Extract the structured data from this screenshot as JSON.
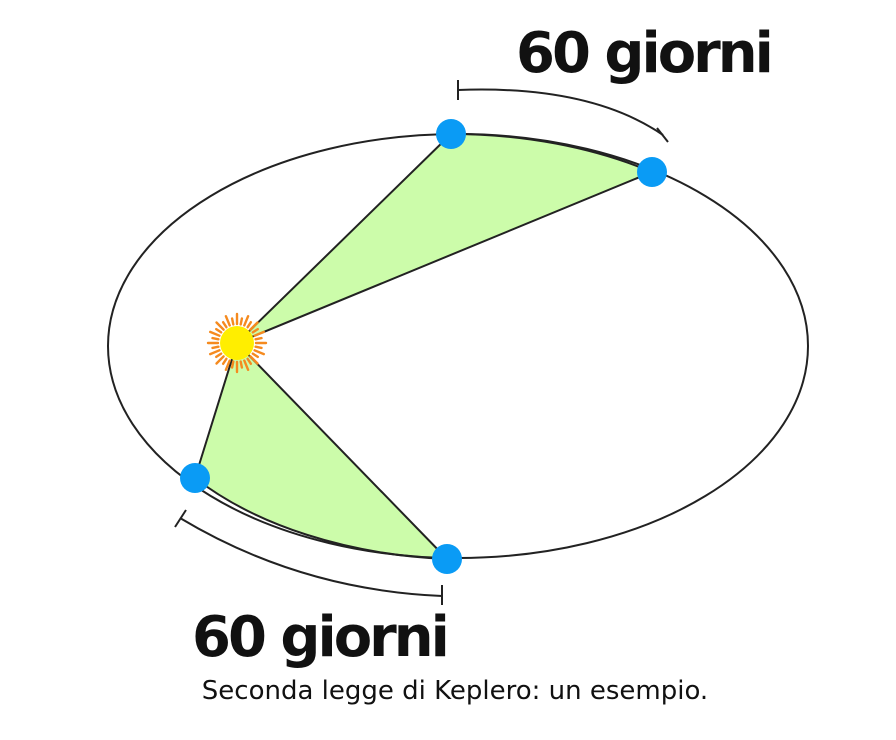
{
  "diagram": {
    "top_label": "60 giorni",
    "bottom_label": "60 giorni",
    "caption": "Seconda legge di Keplero: un esempio."
  },
  "colors": {
    "swept_area": "#ccfcaa",
    "planet": "#0a9bf5",
    "sun_core": "#ffee00",
    "sun_rays": "#f58a1f",
    "orbit": "#222222"
  }
}
